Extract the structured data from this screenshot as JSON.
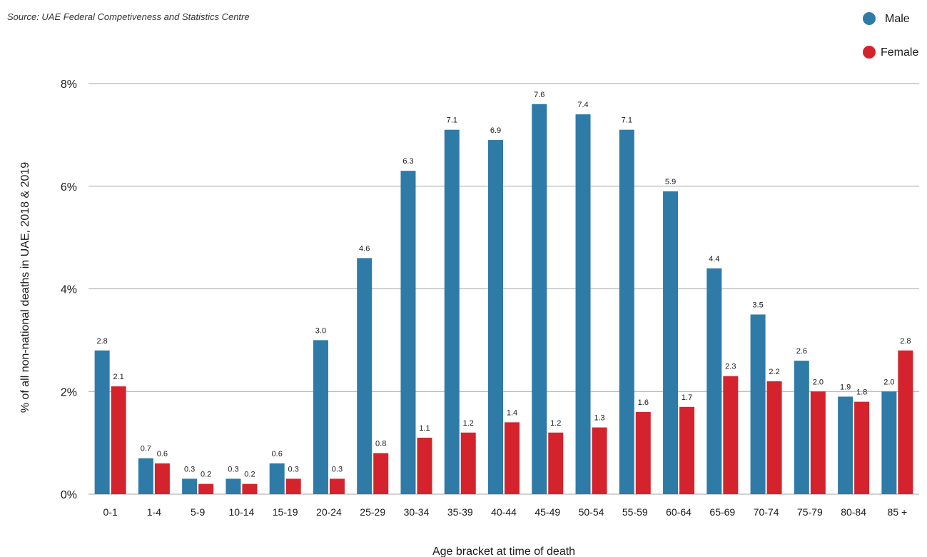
{
  "source": "Source: UAE Federal Competiveness and Statistics Centre",
  "colors": {
    "male": "#2e7ba8",
    "female": "#d4232c",
    "grid": "#a6a6a6"
  },
  "chart_data": {
    "type": "bar",
    "categories": [
      "0-1",
      "1-4",
      "5-9",
      "10-14",
      "15-19",
      "20-24",
      "25-29",
      "30-34",
      "35-39",
      "40-44",
      "45-49",
      "50-54",
      "55-59",
      "60-64",
      "65-69",
      "70-74",
      "75-79",
      "80-84",
      "85 +"
    ],
    "series": [
      {
        "name": "Male",
        "values": [
          2.8,
          0.7,
          0.3,
          0.3,
          0.6,
          3.0,
          4.6,
          6.3,
          7.1,
          6.9,
          7.6,
          7.4,
          7.1,
          5.9,
          4.4,
          3.5,
          2.6,
          1.9,
          2.0
        ],
        "color": "#2e7ba8"
      },
      {
        "name": "Female",
        "values": [
          2.1,
          0.6,
          0.2,
          0.2,
          0.3,
          0.3,
          0.8,
          1.1,
          1.2,
          1.4,
          1.2,
          1.3,
          1.6,
          1.7,
          2.3,
          2.2,
          2.0,
          1.8,
          2.8
        ],
        "color": "#d4232c"
      }
    ],
    "xlabel": "Age bracket at time of death",
    "ylabel": "% of all non-national deaths in UAE, 2018 & 2019",
    "ylim": [
      0,
      8
    ],
    "yticks": [
      0,
      2,
      4,
      6,
      8
    ],
    "ytick_labels": [
      "0%",
      "2%",
      "4%",
      "6%",
      "8%"
    ],
    "grid": true,
    "legend_position": "top-right"
  }
}
